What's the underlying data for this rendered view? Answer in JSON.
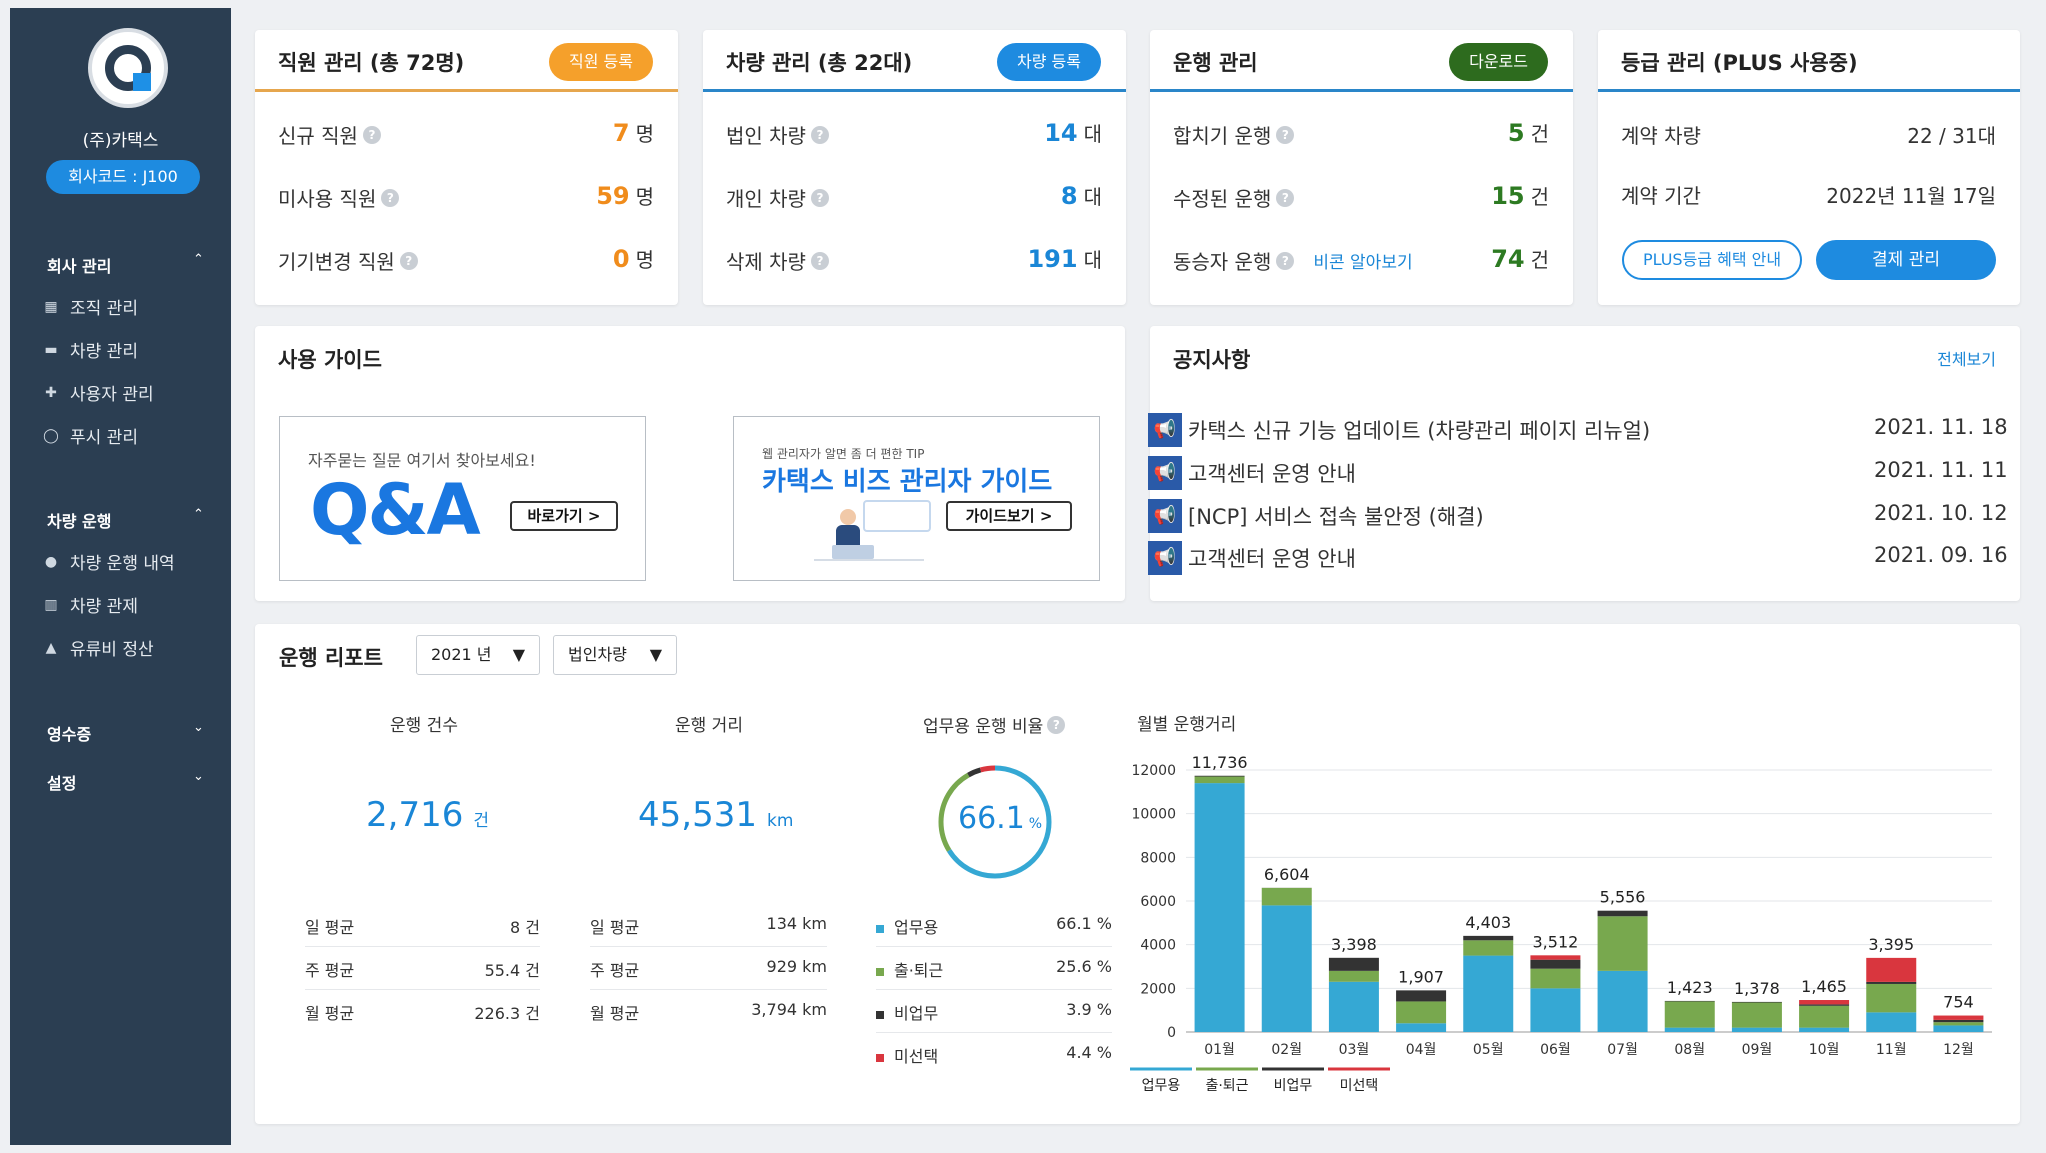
{
  "sidebar": {
    "company_name": "(주)카택스",
    "company_code": "회사코드 : J100",
    "sections": [
      {
        "title": "회사 관리",
        "chevron": "⌃",
        "items": [
          {
            "label": "조직 관리",
            "icon": "▦"
          },
          {
            "label": "차량 관리",
            "icon": "▬"
          },
          {
            "label": "사용자 관리",
            "icon": "✚"
          },
          {
            "label": "푸시 관리",
            "icon": "◯"
          }
        ]
      },
      {
        "title": "차량 운행",
        "chevron": "⌃",
        "items": [
          {
            "label": "차량 운행 내역",
            "icon": "●"
          },
          {
            "label": "차량 관제",
            "icon": "▥"
          },
          {
            "label": "유류비 정산",
            "icon": "▲"
          }
        ]
      },
      {
        "title": "영수증",
        "chevron": "⌄"
      },
      {
        "title": "설정",
        "chevron": "⌄"
      }
    ]
  },
  "cards": {
    "staff": {
      "title": "직원 관리 (총 72명)",
      "button": "직원 등록",
      "rows": [
        {
          "label": "신규 직원",
          "value": "7",
          "unit": "명"
        },
        {
          "label": "미사용 직원",
          "value": "59",
          "unit": "명"
        },
        {
          "label": "기기변경 직원",
          "value": "0",
          "unit": "명"
        }
      ]
    },
    "vehicle": {
      "title": "차량 관리 (총 22대)",
      "button": "차량 등록",
      "rows": [
        {
          "label": "법인 차량",
          "value": "14",
          "unit": "대"
        },
        {
          "label": "개인 차량",
          "value": "8",
          "unit": "대"
        },
        {
          "label": "삭제 차량",
          "value": "191",
          "unit": "대"
        }
      ]
    },
    "operation": {
      "title": "운행 관리",
      "button": "다운로드",
      "rows": [
        {
          "label": "합치기 운행",
          "value": "5",
          "unit": "건"
        },
        {
          "label": "수정된 운행",
          "value": "15",
          "unit": "건"
        },
        {
          "label": "동승자 운행",
          "value": "74",
          "unit": "건",
          "link": "비콘 알아보기"
        }
      ]
    },
    "grade": {
      "title": "등급 관리 (PLUS 사용중)",
      "rows": [
        {
          "label": "계약 차량",
          "value": "22 / 31대"
        },
        {
          "label": "계약 기간",
          "value": "2022년 11월 17일"
        }
      ],
      "btn_info": "PLUS등급 혜택 안내",
      "btn_pay": "결제 관리"
    }
  },
  "guide": {
    "title": "사용 가이드",
    "qa_sub": "자주묻는 질문 여기서 찾아보세요!",
    "qa_big": "Q&A",
    "qa_btn": "바로가기 >",
    "tip": "웹 관리자가 알면 좀 더 편한 TIP",
    "guide_big": "카택스 비즈 관리자 가이드",
    "guide_btn": "가이드보기 >"
  },
  "notice": {
    "title": "공지사항",
    "more": "전체보기",
    "items": [
      {
        "text": "카택스 신규 기능 업데이트 (차량관리 페이지 리뉴얼)",
        "date": "2021. 11. 18"
      },
      {
        "text": "고객센터 운영 안내",
        "date": "2021. 11. 11"
      },
      {
        "text": "[NCP] 서비스 접속 불안정 (해결)",
        "date": "2021. 10. 12"
      },
      {
        "text": "고객센터 운영 안내",
        "date": "2021. 09. 16"
      }
    ]
  },
  "report": {
    "title": "운행 리포트",
    "year_select": "2021 년",
    "type_select": "법인차량",
    "count": {
      "title": "운행 건수",
      "value": "2,716",
      "unit": "건",
      "rows": [
        {
          "l": "일 평균",
          "v": "8 건"
        },
        {
          "l": "주 평균",
          "v": "55.4 건"
        },
        {
          "l": "월 평균",
          "v": "226.3 건"
        }
      ]
    },
    "distance": {
      "title": "운행 거리",
      "value": "45,531",
      "unit": "km",
      "rows": [
        {
          "l": "일 평균",
          "v": "134 km"
        },
        {
          "l": "주 평균",
          "v": "929 km"
        },
        {
          "l": "월 평균",
          "v": "3,794 km"
        }
      ]
    },
    "ratio": {
      "title": "업무용 운행 비율",
      "value": "66.1",
      "unit": "%",
      "rows": [
        {
          "l": "업무용",
          "v": "66.1 %",
          "color": "#35a8d4"
        },
        {
          "l": "출·퇴근",
          "v": "25.6 %",
          "color": "#78a84e"
        },
        {
          "l": "비업무",
          "v": "3.9 %",
          "color": "#333333"
        },
        {
          "l": "미선택",
          "v": "4.4 %",
          "color": "#d9363e"
        }
      ]
    }
  },
  "chart_data": {
    "type": "bar",
    "title": "월별 운행거리",
    "categories": [
      "01월",
      "02월",
      "03월",
      "04월",
      "05월",
      "06월",
      "07월",
      "08월",
      "09월",
      "10월",
      "11월",
      "12월"
    ],
    "totals": [
      11736,
      6604,
      3398,
      1907,
      4403,
      3512,
      5556,
      1423,
      1378,
      1465,
      3395,
      754
    ],
    "total_labels": [
      "11,736",
      "6,604",
      "3,398",
      "1,907",
      "4,403",
      "3,512",
      "5,556",
      "1,423",
      "1,378",
      "1,465",
      "3,395",
      "754"
    ],
    "series": [
      {
        "name": "업무용",
        "color": "#35a8d4",
        "values": [
          11400,
          5800,
          2300,
          400,
          3500,
          2000,
          2800,
          200,
          200,
          200,
          900,
          300
        ]
      },
      {
        "name": "출·퇴근",
        "color": "#78a84e",
        "values": [
          300,
          800,
          500,
          1000,
          700,
          900,
          2500,
          1200,
          1150,
          1000,
          1300,
          150
        ]
      },
      {
        "name": "비업무",
        "color": "#333333",
        "values": [
          36,
          4,
          598,
          507,
          203,
          412,
          256,
          23,
          28,
          65,
          95,
          104
        ]
      },
      {
        "name": "미선택",
        "color": "#d9363e",
        "values": [
          0,
          0,
          0,
          0,
          0,
          200,
          0,
          0,
          0,
          200,
          1100,
          200
        ]
      }
    ],
    "ylim": [
      0,
      12000
    ],
    "yticks": [
      "0",
      "2000",
      "4000",
      "6000",
      "8000",
      "10000",
      "12000"
    ],
    "grid": true,
    "legend": "bottom-left"
  }
}
